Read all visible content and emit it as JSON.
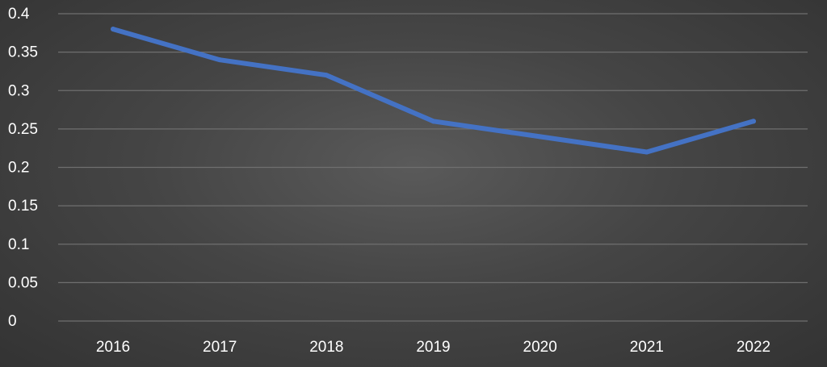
{
  "chart_data": {
    "type": "line",
    "title": "",
    "xlabel": "",
    "ylabel": "",
    "categories": [
      "2016",
      "2017",
      "2018",
      "2019",
      "2020",
      "2021",
      "2022"
    ],
    "series": [
      {
        "values": [
          0.38,
          0.34,
          0.32,
          0.26,
          0.24,
          0.22,
          0.26
        ],
        "color": "#4472C4"
      }
    ],
    "ylim": [
      0,
      0.4
    ],
    "y_ticks": [
      "0",
      "0.05",
      "0.1",
      "0.15",
      "0.2",
      "0.25",
      "0.3",
      "0.35",
      "0.4"
    ],
    "grid": true,
    "legend": "none",
    "colors": {
      "background": "#444444",
      "gridline": "#6f6f6f",
      "text": "#ffffff"
    }
  }
}
